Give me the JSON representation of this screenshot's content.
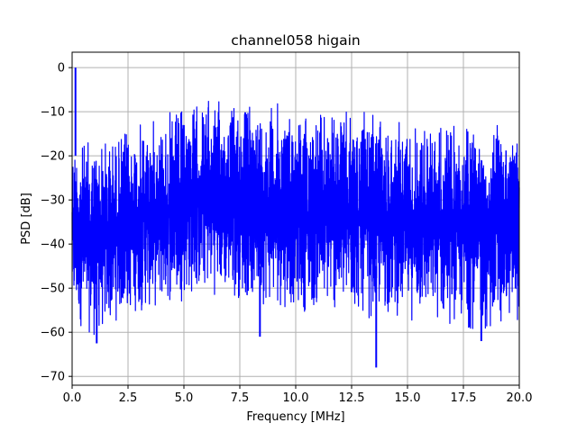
{
  "chart_data": {
    "type": "line",
    "title": "channel058 higain",
    "xlabel": "Frequency [MHz]",
    "ylabel": "PSD [dB]",
    "xlim": [
      0,
      20
    ],
    "ylim": [
      -72,
      3.5
    ],
    "xticks": [
      0,
      2.5,
      5,
      7.5,
      10,
      12.5,
      15,
      17.5,
      20
    ],
    "xtick_labels": [
      "0.0",
      "2.5",
      "5.0",
      "7.5",
      "10.0",
      "12.5",
      "15.0",
      "17.5",
      "20.0"
    ],
    "yticks": [
      0,
      -10,
      -20,
      -30,
      -40,
      -50,
      -60,
      -70
    ],
    "ytick_labels": [
      "0",
      "−10",
      "−20",
      "−30",
      "−40",
      "−50",
      "−60",
      "−70"
    ],
    "grid": true,
    "series": [
      {
        "color": "#0000ff",
        "peak_envelope": {
          "x": [
            0,
            0.5,
            1,
            1.5,
            2,
            2.5,
            3,
            3.5,
            4,
            4.5,
            5,
            5.5,
            6,
            6.5,
            7,
            7.5,
            8,
            8.5,
            9,
            9.5,
            10,
            10.5,
            11,
            11.5,
            12,
            12.5,
            13,
            13.5,
            14,
            14.5,
            15,
            15.5,
            16,
            16.5,
            17,
            17.5,
            18,
            18.5,
            19,
            19.5,
            20
          ],
          "y": [
            -14,
            -16,
            -15,
            -14.5,
            -14,
            -13,
            -12,
            -11,
            -10,
            -9.5,
            -8,
            -7,
            -6,
            -7,
            -7,
            -6.5,
            -7,
            -7,
            -7,
            -7.5,
            -8,
            -8.5,
            -9,
            -9,
            -9.5,
            -9.5,
            -10,
            -10,
            -10.5,
            -11,
            -11,
            -11,
            -11.5,
            -11.5,
            -12,
            -12,
            -12,
            -12.5,
            -12.5,
            -13,
            -13
          ]
        },
        "trough_envelope": {
          "x": [
            0,
            0.5,
            1,
            1.5,
            2,
            2.5,
            3,
            3.5,
            4,
            4.5,
            5,
            5.5,
            6,
            6.5,
            7,
            7.5,
            8,
            8.5,
            9,
            9.5,
            10,
            10.5,
            11,
            11.5,
            12,
            12.5,
            13,
            13.5,
            14,
            14.5,
            15,
            15.5,
            16,
            16.5,
            17,
            17.5,
            18,
            18.5,
            19,
            19.5,
            20
          ],
          "y": [
            -58,
            -60,
            -62,
            -61,
            -58,
            -57,
            -56,
            -56,
            -55,
            -54,
            -53,
            -53,
            -52,
            -52,
            -53,
            -53,
            -54,
            -54,
            -55,
            -55,
            -55,
            -56,
            -56,
            -56,
            -57,
            -57,
            -57,
            -58,
            -57,
            -57,
            -58,
            -58,
            -58,
            -59,
            -59,
            -60,
            -60,
            -61,
            -60,
            -59,
            -58
          ]
        },
        "spikes": [
          {
            "x": 0.15,
            "y": 0
          },
          {
            "x": 8.4,
            "y": -61
          },
          {
            "x": 13.6,
            "y": -68
          },
          {
            "x": 1.1,
            "y": -62.5
          },
          {
            "x": 18.3,
            "y": -62
          }
        ]
      }
    ]
  }
}
